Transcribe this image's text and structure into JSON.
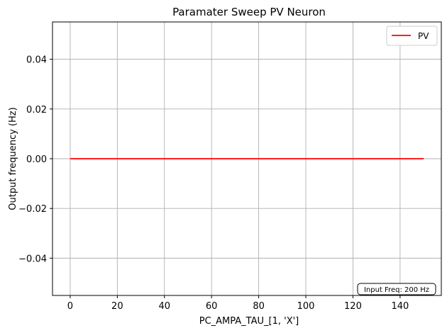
{
  "chart_data": {
    "type": "line",
    "title": "Paramater Sweep PV Neuron",
    "xlabel": "PC_AMPA_TAU_[1, 'X']",
    "ylabel": "Output frequency (Hz)",
    "xlim": [
      -7.5,
      157.5
    ],
    "ylim": [
      -0.055,
      0.055
    ],
    "xticks": [
      0,
      20,
      40,
      60,
      80,
      100,
      120,
      140
    ],
    "xtick_labels": [
      "0",
      "20",
      "40",
      "60",
      "80",
      "100",
      "120",
      "140"
    ],
    "yticks": [
      -0.04,
      -0.02,
      0.0,
      0.02,
      0.04
    ],
    "ytick_labels": [
      "−0.04",
      "−0.02",
      "0.00",
      "0.02",
      "0.04"
    ],
    "grid": true,
    "legend_position": "top-right",
    "series": [
      {
        "name": "PV",
        "color": "#ff0000",
        "x": [
          0,
          150
        ],
        "y": [
          0,
          0
        ]
      }
    ],
    "annotation": "Input Freq: 200 Hz"
  }
}
